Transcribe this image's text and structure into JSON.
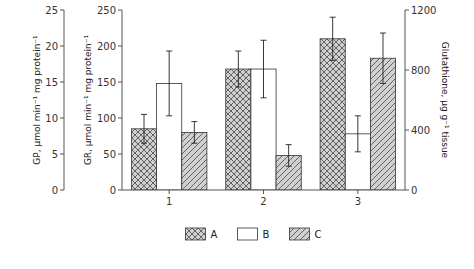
{
  "chart_data": {
    "type": "bar",
    "categories": [
      "1",
      "2",
      "3"
    ],
    "series": [
      {
        "name": "A",
        "color": "#d0d0d0",
        "values": [
          85,
          168,
          210
        ],
        "errors": [
          20,
          25,
          30
        ]
      },
      {
        "name": "B",
        "color": "#ffffff",
        "values": [
          148,
          168,
          78
        ],
        "errors": [
          45,
          40,
          25
        ]
      },
      {
        "name": "C",
        "color": "#d0d0d0",
        "values": [
          80,
          48,
          183
        ],
        "errors": [
          15,
          15,
          35
        ]
      }
    ],
    "ylabel": "GR, μmol min⁻¹ mg protein⁻¹",
    "ylim": [
      0,
      250
    ],
    "yticks": [
      0,
      50,
      100,
      150,
      200,
      250
    ],
    "y3label": "GP, μmol min⁻¹ mg protein⁻¹",
    "y3lim": [
      0,
      25
    ],
    "y3ticks": [
      0,
      5,
      10,
      15,
      20,
      25
    ],
    "y2label": "Glutathione, μg g⁻¹ tissue",
    "y2lim": [
      0,
      1200
    ],
    "y2ticks": [
      0,
      400,
      800,
      1200
    ],
    "grid": false,
    "legend": "bottom"
  }
}
